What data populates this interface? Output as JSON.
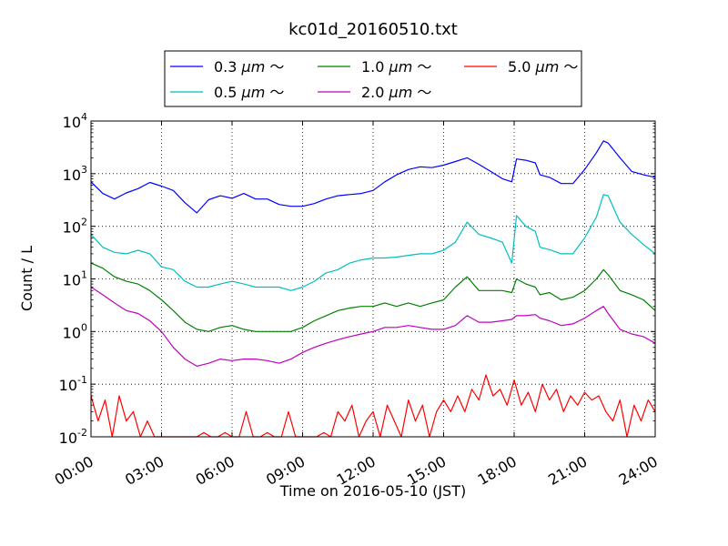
{
  "chart_data": {
    "type": "line",
    "title": "kc01d_20160510.txt",
    "xlabel": "Time on 2016-05-10 (JST)",
    "ylabel": "Count / L",
    "yscale": "log",
    "ylim": [
      0.01,
      10000
    ],
    "xlim": [
      "00:00",
      "24:00"
    ],
    "x_tick_labels": [
      "00:00",
      "03:00",
      "06:00",
      "09:00",
      "12:00",
      "15:00",
      "18:00",
      "21:00",
      "24:00"
    ],
    "x_tick_hours": [
      0,
      3,
      6,
      9,
      12,
      15,
      18,
      21,
      24
    ],
    "y_tick_values": [
      0.01,
      0.1,
      1,
      10,
      100,
      1000,
      10000
    ],
    "y_tick_mantissa": [
      "10",
      "10",
      "10",
      "10",
      "10",
      "10",
      "10"
    ],
    "y_tick_exponents": [
      "-2",
      "-1",
      "0",
      "1",
      "2",
      "3",
      "4"
    ],
    "grid": true,
    "legend_position": "top-center, above plot",
    "series": [
      {
        "name": "0.3 μm ～",
        "legend_prefix": "0.3 ",
        "legend_unit": "μm",
        "legend_suffix": " ～",
        "color": "#0000ff",
        "x_hours": [
          0,
          0.5,
          1,
          1.5,
          2,
          2.5,
          3,
          3.5,
          4,
          4.5,
          5,
          5.5,
          6,
          6.5,
          7,
          7.5,
          8,
          8.5,
          9,
          9.5,
          10,
          10.5,
          11,
          11.5,
          12,
          12.5,
          13,
          13.5,
          14,
          14.5,
          15,
          15.5,
          16,
          16.5,
          17,
          17.5,
          17.9,
          18.1,
          18.5,
          18.9,
          19.1,
          19.5,
          20,
          20.5,
          21,
          21.5,
          21.8,
          22,
          22.5,
          23,
          23.5,
          24
        ],
        "values": [
          700,
          420,
          330,
          430,
          520,
          680,
          580,
          480,
          280,
          180,
          320,
          380,
          340,
          420,
          330,
          330,
          260,
          240,
          240,
          270,
          330,
          380,
          400,
          420,
          480,
          700,
          950,
          1200,
          1350,
          1300,
          1450,
          1700,
          2000,
          1500,
          1100,
          800,
          700,
          1900,
          1800,
          1600,
          950,
          850,
          650,
          650,
          1200,
          2500,
          4200,
          3800,
          2000,
          1100,
          950,
          850
        ]
      },
      {
        "name": "0.5 μm ～",
        "legend_prefix": "0.5 ",
        "legend_unit": "μm",
        "legend_suffix": " ～",
        "color": "#00bfbf",
        "x_hours": [
          0,
          0.5,
          1,
          1.5,
          2,
          2.5,
          3,
          3.5,
          4,
          4.5,
          5,
          5.5,
          6,
          6.5,
          7,
          7.5,
          8,
          8.5,
          9,
          9.5,
          10,
          10.5,
          11,
          11.5,
          12,
          12.5,
          13,
          13.5,
          14,
          14.5,
          15,
          15.5,
          16,
          16.5,
          17,
          17.5,
          17.9,
          18.1,
          18.5,
          18.9,
          19.1,
          19.5,
          20,
          20.5,
          21,
          21.5,
          21.8,
          22,
          22.5,
          23,
          23.5,
          24
        ],
        "values": [
          70,
          40,
          32,
          30,
          35,
          30,
          17,
          15,
          9,
          7,
          7,
          8,
          9,
          8,
          7,
          7,
          7,
          6,
          7,
          9,
          13,
          15,
          20,
          23,
          25,
          25,
          26,
          28,
          30,
          30,
          35,
          50,
          120,
          70,
          60,
          50,
          20,
          160,
          100,
          80,
          40,
          36,
          30,
          30,
          60,
          150,
          400,
          380,
          120,
          70,
          45,
          30
        ]
      },
      {
        "name": "1.0 μm ～",
        "legend_prefix": "1.0 ",
        "legend_unit": "μm",
        "legend_suffix": " ～",
        "color": "#008000",
        "x_hours": [
          0,
          0.5,
          1,
          1.5,
          2,
          2.5,
          3,
          3.5,
          4,
          4.5,
          5,
          5.5,
          6,
          6.5,
          7,
          7.5,
          8,
          8.5,
          9,
          9.5,
          10,
          10.5,
          11,
          11.5,
          12,
          12.5,
          13,
          13.5,
          14,
          14.5,
          15,
          15.5,
          16,
          16.5,
          17,
          17.5,
          17.9,
          18.1,
          18.5,
          18.9,
          19.1,
          19.5,
          20,
          20.5,
          21,
          21.5,
          21.8,
          22,
          22.5,
          23,
          23.5,
          24
        ],
        "values": [
          20,
          16,
          11,
          9,
          8,
          6,
          4,
          2.5,
          1.5,
          1.1,
          1,
          1.2,
          1.3,
          1.1,
          1,
          1,
          1,
          1,
          1.2,
          1.6,
          2,
          2.5,
          2.8,
          3,
          3,
          3.5,
          3,
          3.5,
          3,
          3.5,
          4,
          7,
          11,
          6,
          6,
          6,
          5.5,
          10,
          8,
          7,
          5,
          5.5,
          4,
          4.5,
          6,
          10,
          15,
          12,
          6,
          5,
          4,
          2.5
        ]
      },
      {
        "name": "2.0 μm ～",
        "legend_prefix": "2.0 ",
        "legend_unit": "μm",
        "legend_suffix": " ～",
        "color": "#bf00bf",
        "x_hours": [
          0,
          0.5,
          1,
          1.5,
          2,
          2.5,
          3,
          3.5,
          4,
          4.5,
          5,
          5.5,
          6,
          6.5,
          7,
          7.5,
          8,
          8.5,
          9,
          9.5,
          10,
          10.5,
          11,
          11.5,
          12,
          12.5,
          13,
          13.5,
          14,
          14.5,
          15,
          15.5,
          16,
          16.5,
          17,
          17.5,
          17.9,
          18.1,
          18.5,
          18.9,
          19.1,
          19.5,
          20,
          20.5,
          21,
          21.5,
          21.8,
          22,
          22.5,
          23,
          23.5,
          24
        ],
        "values": [
          7,
          5,
          3.5,
          2.5,
          2.2,
          1.6,
          1,
          0.5,
          0.3,
          0.22,
          0.25,
          0.3,
          0.28,
          0.3,
          0.3,
          0.28,
          0.25,
          0.3,
          0.4,
          0.5,
          0.6,
          0.7,
          0.8,
          0.9,
          1,
          1.2,
          1.2,
          1.3,
          1.2,
          1.1,
          1.1,
          1.3,
          2,
          1.5,
          1.5,
          1.6,
          1.7,
          2,
          2,
          2.1,
          1.8,
          1.6,
          1.3,
          1.4,
          1.8,
          2.5,
          3,
          2.2,
          1.1,
          0.9,
          0.8,
          0.6
        ]
      },
      {
        "name": "5.0 μm ～",
        "legend_prefix": "5.0 ",
        "legend_unit": "μm",
        "legend_suffix": " ～",
        "color": "#ff0000",
        "x_hours": [
          0,
          0.3,
          0.6,
          0.9,
          1.2,
          1.5,
          1.8,
          2.1,
          2.4,
          2.7,
          3,
          3.3,
          3.6,
          3.9,
          4.2,
          4.5,
          4.8,
          5.1,
          5.4,
          5.7,
          6,
          6.3,
          6.6,
          6.9,
          7.2,
          7.5,
          7.8,
          8.1,
          8.4,
          8.7,
          9,
          9.3,
          9.6,
          9.9,
          10.2,
          10.5,
          10.8,
          11.1,
          11.4,
          11.7,
          12,
          12.3,
          12.6,
          12.9,
          13.2,
          13.5,
          13.8,
          14.1,
          14.4,
          14.7,
          15,
          15.3,
          15.6,
          15.9,
          16.2,
          16.5,
          16.8,
          17.1,
          17.4,
          17.7,
          18,
          18.3,
          18.6,
          18.9,
          19.2,
          19.5,
          19.8,
          20.1,
          20.4,
          20.7,
          21,
          21.3,
          21.6,
          21.9,
          22.2,
          22.5,
          22.8,
          23.1,
          23.4,
          23.7,
          24
        ],
        "values": [
          0.06,
          0.02,
          0.05,
          0.01,
          0.06,
          0.02,
          0.03,
          0.01,
          0.02,
          0.01,
          0.01,
          0.01,
          0.01,
          0.01,
          0.01,
          0.01,
          0.012,
          0.01,
          0.01,
          0.012,
          0.01,
          0.01,
          0.03,
          0.01,
          0.01,
          0.012,
          0.01,
          0.01,
          0.03,
          0.01,
          0.01,
          0.01,
          0.01,
          0.012,
          0.01,
          0.03,
          0.02,
          0.04,
          0.01,
          0.02,
          0.03,
          0.01,
          0.04,
          0.02,
          0.01,
          0.05,
          0.02,
          0.04,
          0.01,
          0.03,
          0.05,
          0.03,
          0.06,
          0.03,
          0.08,
          0.05,
          0.15,
          0.06,
          0.08,
          0.04,
          0.12,
          0.04,
          0.07,
          0.03,
          0.1,
          0.05,
          0.08,
          0.03,
          0.06,
          0.04,
          0.07,
          0.05,
          0.06,
          0.03,
          0.02,
          0.05,
          0.01,
          0.04,
          0.02,
          0.05,
          0.03
        ]
      }
    ]
  }
}
